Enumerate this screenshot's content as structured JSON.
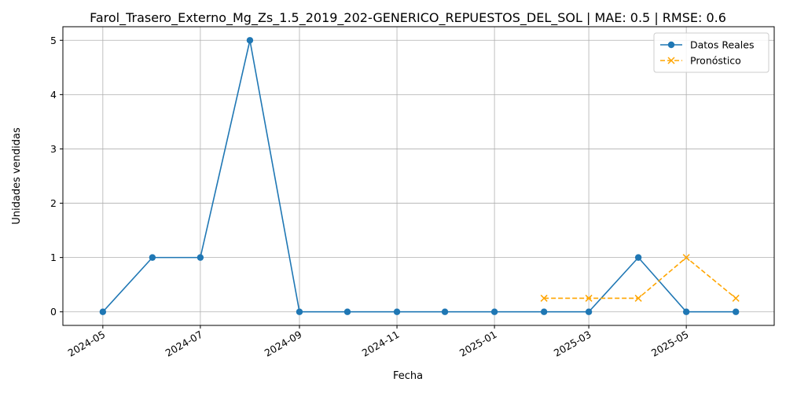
{
  "chart_data": {
    "type": "line",
    "title": "Farol_Trasero_Externo_Mg_Zs_1.5_2019_202-GENERICO_REPUESTOS_DEL_SOL | MAE: 0.5 | RMSE: 0.6",
    "xlabel": "Fecha",
    "ylabel": "Unidades vendidas",
    "xlim": [
      "2024-04-06",
      "2025-06-25"
    ],
    "ylim": [
      -0.25,
      5.25
    ],
    "grid": true,
    "legend_position": "top-right",
    "x_ticks": [
      "2024-05",
      "2024-07",
      "2024-09",
      "2024-11",
      "2025-01",
      "2025-03",
      "2025-05"
    ],
    "y_ticks": [
      0,
      1,
      2,
      3,
      4,
      5
    ],
    "series": [
      {
        "name": "Datos Reales",
        "color": "#1f77b4",
        "style": "solid",
        "marker": "circle",
        "points": [
          {
            "x": "2024-05-01",
            "y": 0
          },
          {
            "x": "2024-06-01",
            "y": 1
          },
          {
            "x": "2024-07-01",
            "y": 1
          },
          {
            "x": "2024-08-01",
            "y": 5
          },
          {
            "x": "2024-09-01",
            "y": 0
          },
          {
            "x": "2024-10-01",
            "y": 0
          },
          {
            "x": "2024-11-01",
            "y": 0
          },
          {
            "x": "2024-12-01",
            "y": 0
          },
          {
            "x": "2025-01-01",
            "y": 0
          },
          {
            "x": "2025-02-01",
            "y": 0
          },
          {
            "x": "2025-03-01",
            "y": 0
          },
          {
            "x": "2025-04-01",
            "y": 1
          },
          {
            "x": "2025-05-01",
            "y": 0
          },
          {
            "x": "2025-06-01",
            "y": 0
          }
        ]
      },
      {
        "name": "Pronóstico",
        "color": "#ffa500",
        "style": "dashed",
        "marker": "x",
        "points": [
          {
            "x": "2025-02-01",
            "y": 0.25
          },
          {
            "x": "2025-03-01",
            "y": 0.25
          },
          {
            "x": "2025-04-01",
            "y": 0.25
          },
          {
            "x": "2025-05-01",
            "y": 1
          },
          {
            "x": "2025-06-01",
            "y": 0.25
          }
        ]
      }
    ]
  }
}
